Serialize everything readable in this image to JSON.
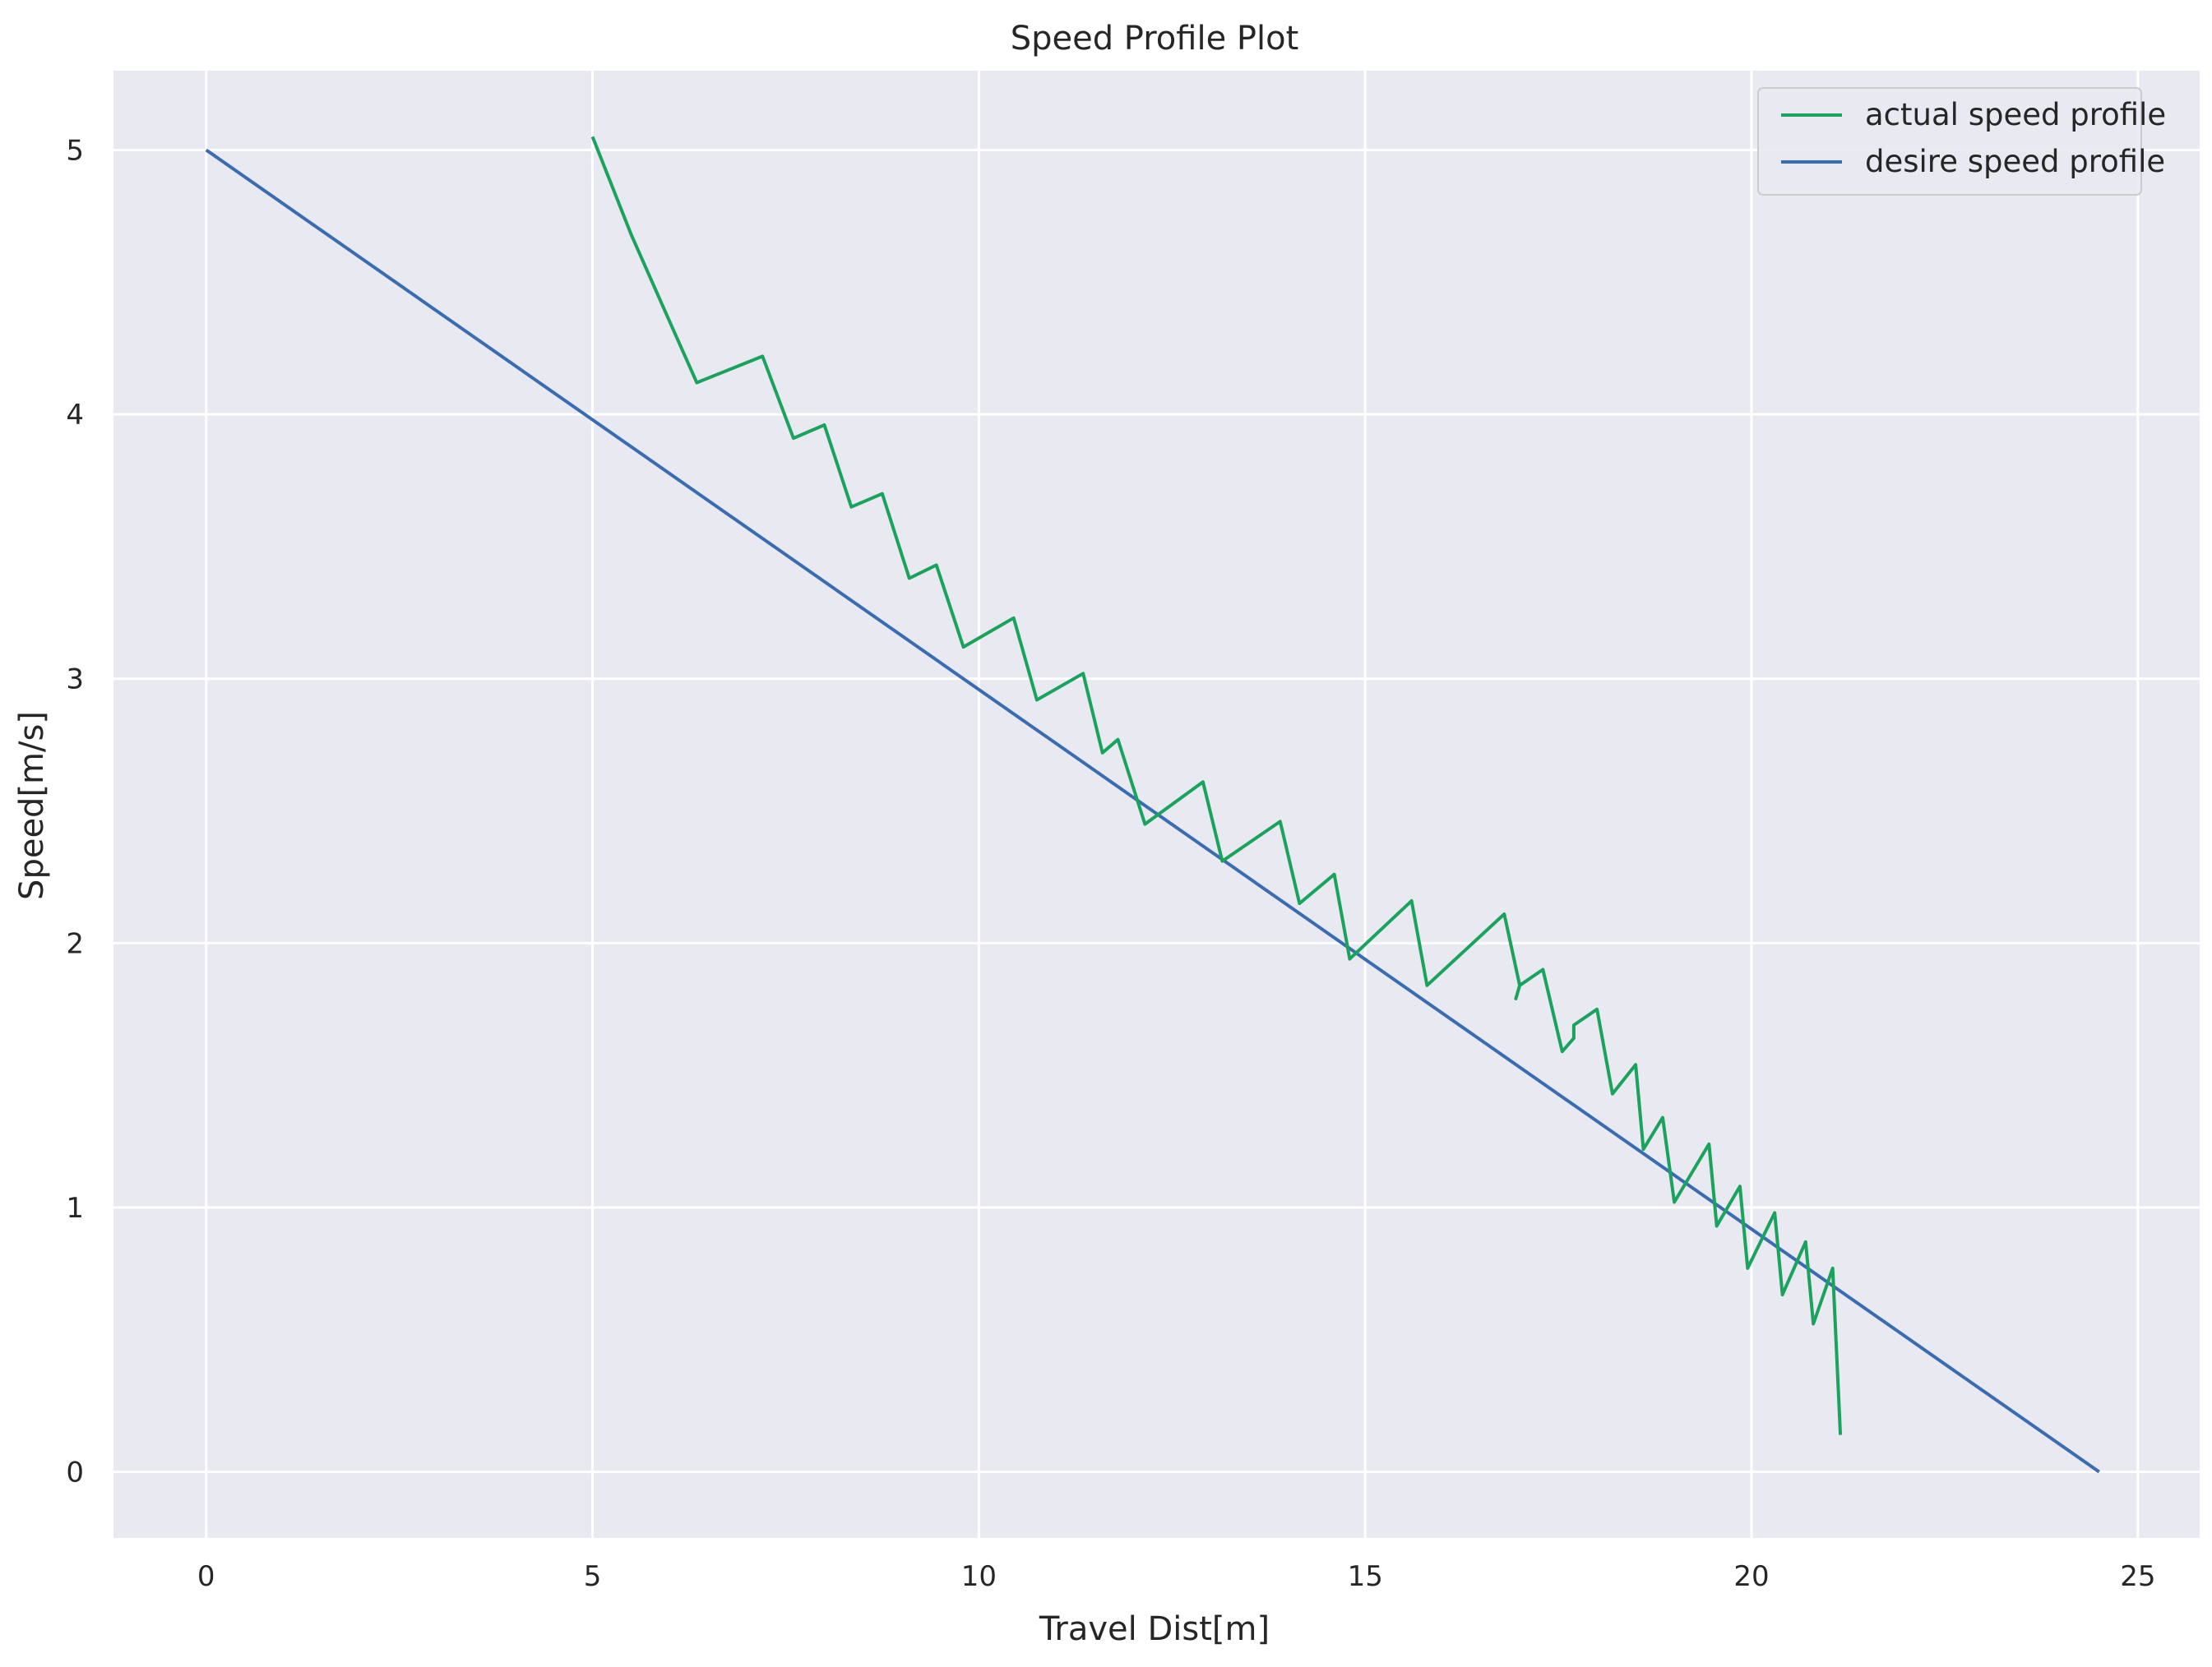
{
  "chart_data": {
    "type": "line",
    "title": "Speed Profile Plot",
    "xlabel": "Travel Dist[m]",
    "ylabel": "Speed[m/s]",
    "xlim": [
      -1.2,
      25.8
    ],
    "ylim": [
      -0.25,
      5.3
    ],
    "xticks": [
      0,
      5,
      10,
      15,
      20,
      25
    ],
    "yticks": [
      0,
      1,
      2,
      3,
      4,
      5
    ],
    "grid": true,
    "background": "#e8e9f1",
    "grid_color": "#ffffff",
    "legend_position": "top-right",
    "series": [
      {
        "name": "actual speed profile",
        "color": "#1aa35c",
        "x": [
          5.0,
          5.5,
          6.0,
          6.35,
          7.2,
          7.6,
          8.0,
          8.35,
          8.75,
          9.1,
          9.45,
          9.8,
          10.45,
          10.75,
          11.35,
          11.6,
          11.8,
          12.15,
          12.9,
          13.15,
          13.9,
          14.15,
          14.6,
          14.8,
          15.6,
          15.8,
          16.8,
          17.0,
          16.95,
          17.0,
          17.3,
          17.55,
          17.7,
          17.7,
          18.0,
          18.2,
          18.5,
          18.6,
          18.85,
          19.0,
          19.45,
          19.55,
          19.85,
          19.95,
          20.3,
          20.4,
          20.7,
          20.8,
          21.05,
          21.15
        ],
        "y": [
          5.05,
          4.68,
          4.35,
          4.12,
          4.22,
          3.91,
          3.96,
          3.65,
          3.7,
          3.38,
          3.43,
          3.12,
          3.23,
          2.92,
          3.02,
          2.72,
          2.77,
          2.45,
          2.61,
          2.31,
          2.46,
          2.15,
          2.26,
          1.94,
          2.16,
          1.84,
          2.11,
          1.84,
          1.79,
          1.84,
          1.9,
          1.59,
          1.64,
          1.69,
          1.75,
          1.43,
          1.54,
          1.22,
          1.34,
          1.02,
          1.24,
          0.93,
          1.08,
          0.77,
          0.98,
          0.67,
          0.87,
          0.56,
          0.77,
          0.14
        ]
      },
      {
        "name": "desire speed profile",
        "color": "#3a6cb3",
        "x": [
          0,
          24.5
        ],
        "y": [
          5.0,
          0.0
        ]
      }
    ]
  }
}
